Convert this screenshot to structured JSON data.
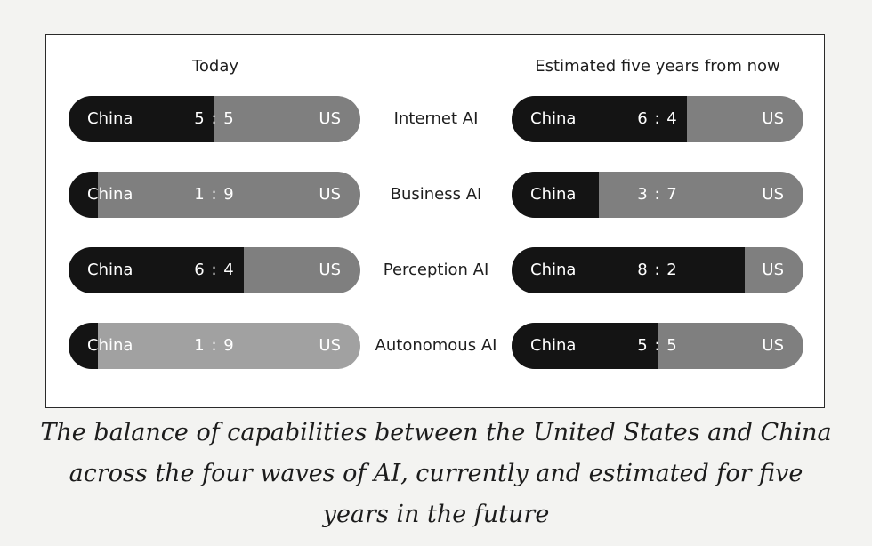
{
  "chart_data": {
    "type": "bar",
    "subtype": "stacked-ratio",
    "headings": {
      "today": "Today",
      "future": "Estimated five years from now"
    },
    "side_labels": {
      "left": "China",
      "right": "US"
    },
    "categories": [
      "Internet AI",
      "Business AI",
      "Perception AI",
      "Autonomous  AI"
    ],
    "today": [
      {
        "china": 5,
        "us": 5,
        "ratio_text": "5 : 5",
        "us_color": "#7f7f7f"
      },
      {
        "china": 1,
        "us": 9,
        "ratio_text": "1 : 9",
        "us_color": "#7f7f7f"
      },
      {
        "china": 6,
        "us": 4,
        "ratio_text": "6 : 4",
        "us_color": "#7f7f7f"
      },
      {
        "china": 1,
        "us": 9,
        "ratio_text": "1 : 9",
        "us_color": "#a1a1a1"
      }
    ],
    "future": [
      {
        "china": 6,
        "us": 4,
        "ratio_text": "6 : 4",
        "us_color": "#7f7f7f"
      },
      {
        "china": 3,
        "us": 7,
        "ratio_text": "3 : 7",
        "us_color": "#7f7f7f"
      },
      {
        "china": 8,
        "us": 2,
        "ratio_text": "8 : 2",
        "us_color": "#7f7f7f"
      },
      {
        "china": 5,
        "us": 5,
        "ratio_text": "5 : 5",
        "us_color": "#7f7f7f"
      }
    ],
    "china_color": "#141414"
  },
  "caption": "The balance of capabilities between the United States and China across the four waves of AI, currently and estimated for five years in the future"
}
